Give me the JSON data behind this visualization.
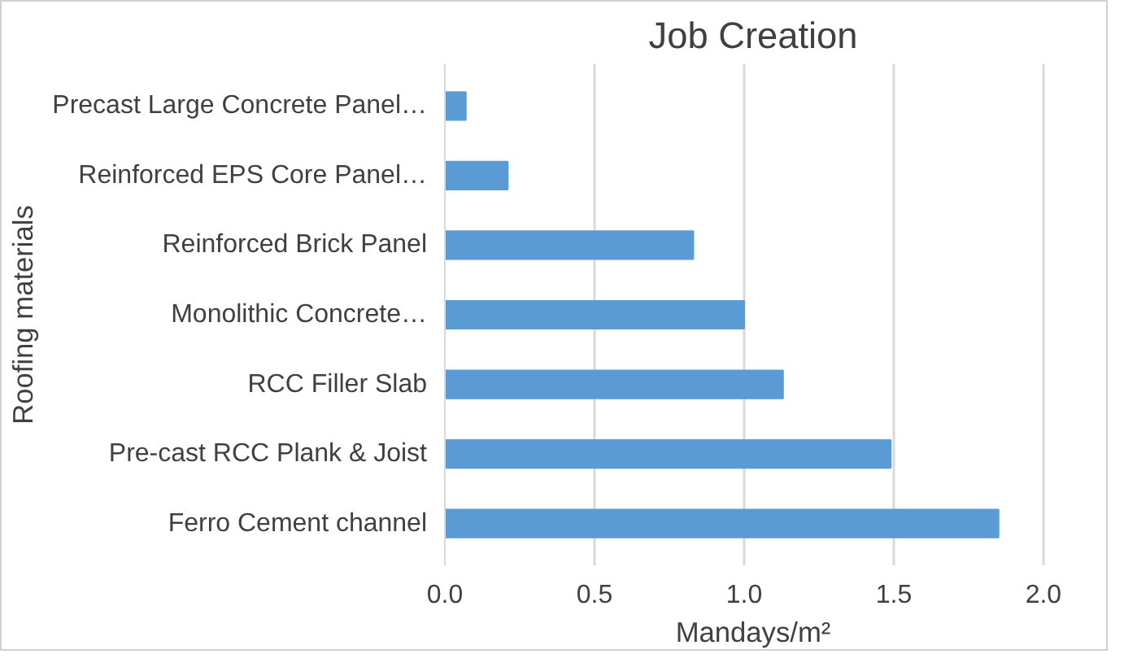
{
  "chart_data": {
    "type": "bar",
    "orientation": "horizontal",
    "title": "Job Creation",
    "xlabel": "Mandays/m²",
    "ylabel": "Roofing materials",
    "categories": [
      "Precast Large Concrete Panel…",
      "Reinforced EPS Core Panel…",
      "Reinforced Brick Panel",
      "Monolithic Concrete…",
      "RCC Filler Slab",
      "Pre-cast RCC Plank & Joist",
      "Ferro Cement channel"
    ],
    "values": [
      0.07,
      0.21,
      0.83,
      1.0,
      1.13,
      1.49,
      1.85
    ],
    "color": "#5b9bd5",
    "xlim": [
      0,
      2.0
    ],
    "xticks": [
      {
        "value": 0,
        "label": "0.0"
      },
      {
        "value": 0.5,
        "label": "0.5"
      },
      {
        "value": 1.0,
        "label": "1.0"
      },
      {
        "value": 1.5,
        "label": "1.5"
      },
      {
        "value": 2.0,
        "label": "2.0"
      }
    ],
    "grid": "x"
  }
}
